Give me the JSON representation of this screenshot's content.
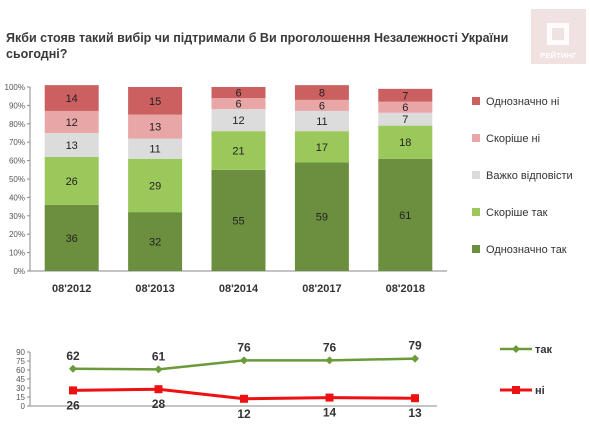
{
  "header": {
    "title": "Якби стояв такий вибір чи підтримали б Ви проголошення Незалежності України сьогодні?",
    "logo_text": "РЕЙТИНГ"
  },
  "chart_data": [
    {
      "type": "bar",
      "stacked": true,
      "percent": true,
      "categories": [
        "08'2012",
        "08'2013",
        "08'2014",
        "08'2017",
        "08'2018"
      ],
      "series": [
        {
          "name": "Однозначно так",
          "values": [
            36,
            32,
            55,
            59,
            61
          ],
          "color": "#6b8f3e"
        },
        {
          "name": "Скоріше так",
          "values": [
            26,
            29,
            21,
            17,
            18
          ],
          "color": "#9bc85a"
        },
        {
          "name": "Важко відповісти",
          "values": [
            13,
            11,
            12,
            11,
            7
          ],
          "color": "#dcdcdc"
        },
        {
          "name": "Скоріше ні",
          "values": [
            12,
            13,
            6,
            6,
            6
          ],
          "color": "#e8a6a6"
        },
        {
          "name": "Однозначно ні",
          "values": [
            14,
            15,
            6,
            8,
            7
          ],
          "color": "#cc5f5f"
        }
      ],
      "legend_order": [
        "Однозначно ні",
        "Скоріше ні",
        "Важко відповісти",
        "Скоріше так",
        "Однозначно так"
      ],
      "y_ticks": [
        "0%",
        "10%",
        "20%",
        "30%",
        "40%",
        "50%",
        "60%",
        "70%",
        "80%",
        "90%",
        "100%"
      ],
      "ylim": [
        0,
        100
      ],
      "legend_position": "right",
      "grid": false
    },
    {
      "type": "line",
      "categories": [
        "08'2012",
        "08'2013",
        "08'2014",
        "08'2017",
        "08'2018"
      ],
      "series": [
        {
          "name": "так",
          "values": [
            62,
            61,
            76,
            76,
            79
          ],
          "color": "#6a9a3a"
        },
        {
          "name": "ні",
          "values": [
            26,
            28,
            12,
            14,
            13
          ],
          "color": "#ee1111"
        }
      ],
      "y_ticks": [
        "0",
        "15",
        "30",
        "45",
        "60",
        "75",
        "90"
      ],
      "ylim": [
        0,
        90
      ],
      "legend_position": "right",
      "grid": false
    }
  ]
}
